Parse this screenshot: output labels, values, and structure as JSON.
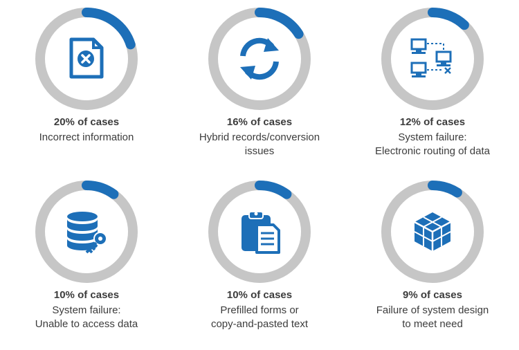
{
  "colors": {
    "ring": "#c6c6c6",
    "accent": "#1d6fb8",
    "text": "#3c3c3c"
  },
  "chart_data": {
    "type": "radial",
    "unit": "% of cases",
    "items": [
      {
        "value": 20,
        "value_label": "20% of cases",
        "label_lines": [
          "Incorrect information"
        ],
        "icon": "document-error-icon"
      },
      {
        "value": 16,
        "value_label": "16% of cases",
        "label_lines": [
          "Hybrid records/conversion",
          "issues"
        ],
        "icon": "sync-arrows-icon"
      },
      {
        "value": 12,
        "value_label": "12% of cases",
        "label_lines": [
          "System failure:",
          "Electronic routing of data"
        ],
        "icon": "network-computers-icon"
      },
      {
        "value": 10,
        "value_label": "10% of cases",
        "label_lines": [
          "System failure:",
          "Unable to access data"
        ],
        "icon": "database-key-icon"
      },
      {
        "value": 10,
        "value_label": "10% of cases",
        "label_lines": [
          "Prefilled forms or",
          "copy-and-pasted text"
        ],
        "icon": "clipboard-form-icon"
      },
      {
        "value": 9,
        "value_label": "9% of cases",
        "label_lines": [
          "Failure of system design",
          "to meet need"
        ],
        "icon": "cubes-icon"
      }
    ]
  }
}
